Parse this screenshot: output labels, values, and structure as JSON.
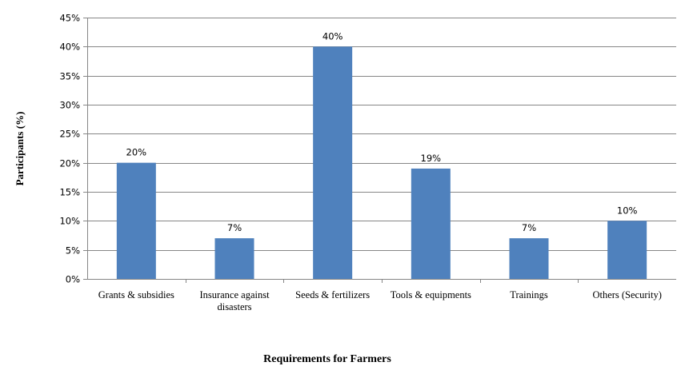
{
  "chart_data": {
    "type": "bar",
    "categories": [
      [
        "Grants & subsidies"
      ],
      [
        "Insurance against",
        "disasters"
      ],
      [
        "Seeds & fertilizers"
      ],
      [
        "Tools & equipments"
      ],
      [
        "Trainings"
      ],
      [
        "Others (Security)"
      ]
    ],
    "values": [
      20,
      7,
      40,
      19,
      7,
      10
    ],
    "data_labels": [
      "20%",
      "7%",
      "40%",
      "19%",
      "7%",
      "10%"
    ],
    "y_ticks": [
      "0%",
      "5%",
      "10%",
      "15%",
      "20%",
      "25%",
      "30%",
      "35%",
      "40%",
      "45%"
    ],
    "xlabel": "Requirements for Farmers",
    "ylabel": "Participants (%)",
    "ylim": [
      0,
      45
    ],
    "grid": true,
    "legend": "none",
    "bar_color": "#4F81BD",
    "grid_color": "#868686"
  }
}
